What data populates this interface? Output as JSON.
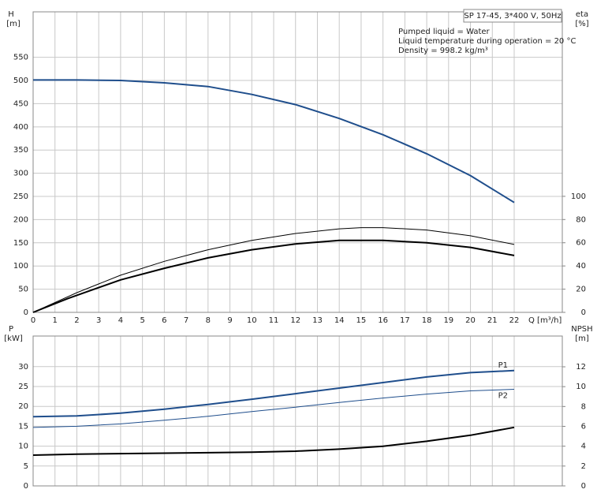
{
  "chart_data": [
    {
      "type": "line",
      "y_label": "H",
      "y_unit": "[m]",
      "y2_label": "eta",
      "y2_unit": "[%]",
      "x_label": "Q [m³/h]",
      "box_label": "SP 17-45, 3*400 V, 50Hz",
      "annotations": [
        "Pumped liquid = Water",
        "Liquid temperature during operation = 20 °C",
        "Density = 998.2 kg/m³"
      ],
      "xlim": [
        0,
        24.2
      ],
      "xticks": [
        0,
        1,
        2,
        3,
        4,
        5,
        6,
        7,
        8,
        9,
        10,
        11,
        12,
        13,
        14,
        15,
        16,
        17,
        18,
        19,
        20,
        21,
        22
      ],
      "ylim": [
        0,
        648
      ],
      "yticks": [
        0,
        50,
        100,
        150,
        200,
        250,
        300,
        350,
        400,
        450,
        500,
        550
      ],
      "y2lim": [
        0,
        259
      ],
      "y2ticks": [
        0,
        20,
        40,
        60,
        80,
        100
      ],
      "grid": true,
      "series": [
        {
          "color": "#1f4e8c",
          "line_width": 2,
          "x": [
            0,
            2,
            4,
            6,
            8,
            10,
            12,
            14,
            16,
            18,
            20,
            22
          ],
          "values": [
            501,
            501,
            500,
            495,
            487,
            470,
            448,
            418,
            383,
            342,
            295,
            237
          ]
        },
        {
          "color": "#000000",
          "line_width": 1,
          "axis": "y2",
          "x": [
            0,
            2,
            4,
            6,
            8,
            10,
            12,
            14,
            15,
            16,
            18,
            20,
            22
          ],
          "values": [
            0,
            17,
            32,
            44,
            54,
            62,
            68,
            72,
            73,
            73,
            71,
            66,
            58.5
          ]
        },
        {
          "color": "#000000",
          "line_width": 2,
          "axis": "y2",
          "x": [
            0,
            1.6,
            4,
            6,
            8,
            10,
            12,
            14,
            16,
            18,
            20,
            22
          ],
          "values": [
            0,
            12,
            28,
            38,
            47,
            54,
            59,
            62,
            62,
            60,
            56,
            49
          ]
        }
      ]
    },
    {
      "type": "line",
      "y_label": "P",
      "y_unit": "[kW]",
      "y2_label": "NPSH",
      "y2_unit": "[m]",
      "xlim": [
        0,
        24.2
      ],
      "ylim": [
        0,
        37.7
      ],
      "yticks": [
        0,
        5,
        10,
        15,
        20,
        25,
        30
      ],
      "y2lim": [
        0,
        15.1
      ],
      "y2ticks": [
        0,
        2,
        4,
        6,
        8,
        10,
        12
      ],
      "grid": true,
      "series": [
        {
          "name": "P1",
          "color": "#1f4e8c",
          "line_width": 2,
          "x": [
            0,
            2,
            4,
            6,
            8,
            10,
            12,
            14,
            16,
            18,
            20,
            22
          ],
          "values": [
            17.4,
            17.6,
            18.3,
            19.3,
            20.5,
            21.8,
            23.2,
            24.6,
            26,
            27.4,
            28.5,
            29
          ]
        },
        {
          "name": "P2",
          "color": "#1f4e8c",
          "line_width": 1,
          "x": [
            0,
            2,
            4,
            6,
            8,
            10,
            12,
            14,
            16,
            18,
            20,
            22
          ],
          "values": [
            14.7,
            15,
            15.6,
            16.5,
            17.5,
            18.7,
            19.8,
            21,
            22.1,
            23.1,
            23.9,
            24.3
          ]
        },
        {
          "color": "#000000",
          "line_width": 2,
          "axis": "y2",
          "x": [
            0,
            2,
            6,
            10,
            12,
            14,
            16,
            18,
            20,
            22
          ],
          "values": [
            3.1,
            3.2,
            3.3,
            3.4,
            3.5,
            3.7,
            4.0,
            4.5,
            5.1,
            5.9
          ]
        }
      ]
    }
  ]
}
